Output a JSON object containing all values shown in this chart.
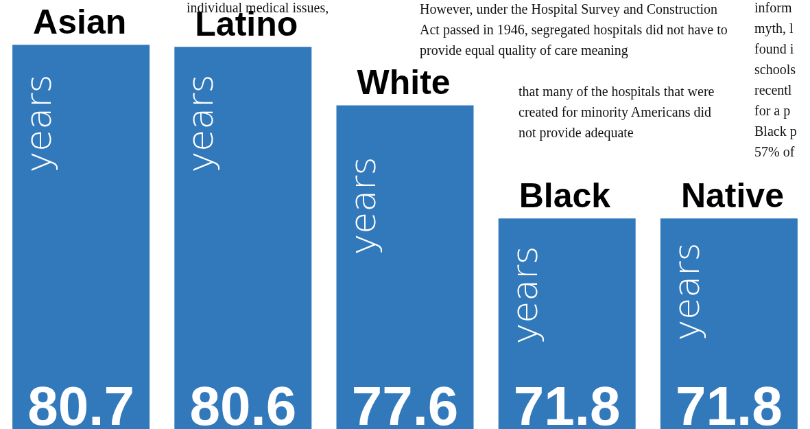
{
  "chart_data": {
    "type": "bar",
    "categories": [
      "Asian",
      "Latino",
      "White",
      "Black",
      "Native"
    ],
    "values": [
      80.7,
      80.6,
      77.6,
      71.8,
      71.8
    ],
    "color": "#3279bc",
    "ylim": [
      61,
      83
    ],
    "tick_labels": false,
    "grid": false,
    "data_labels": true,
    "annotations": [
      "years",
      "years",
      "years",
      "years",
      "years",
      "individual medical issues,",
      "However, under the Hospital Survey and Construction Act passed in 1946, segregated hospitals did not have to provide equal quality of care meaning",
      "that many of the hospitals that were created for minority Americans did not provide adequate",
      "inform\nmyth, l\nfound i\nschools\nrecentl\nfor a p\nBlack p\n57% of"
    ]
  }
}
